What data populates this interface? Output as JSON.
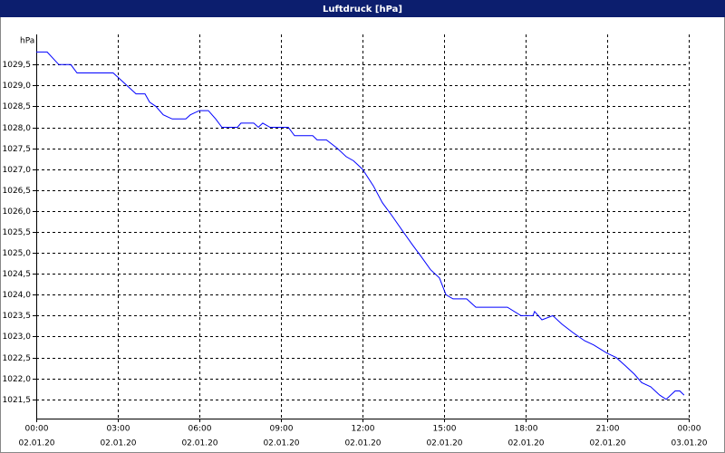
{
  "chart_data": {
    "type": "line",
    "title": "Luftdruck [hPa]",
    "ylabel": "hPa",
    "grid": true,
    "xlim": [
      0,
      24
    ],
    "ylim": [
      1021.04,
      1030.22
    ],
    "xticks": [
      {
        "value": 0,
        "label": "00:00",
        "date": "02.01.20"
      },
      {
        "value": 3,
        "label": "03:00",
        "date": "02.01.20"
      },
      {
        "value": 6,
        "label": "06:00",
        "date": "02.01.20"
      },
      {
        "value": 9,
        "label": "09:00",
        "date": "02.01.20"
      },
      {
        "value": 12,
        "label": "12:00",
        "date": "02.01.20"
      },
      {
        "value": 15,
        "label": "15:00",
        "date": "02.01.20"
      },
      {
        "value": 18,
        "label": "18:00",
        "date": "02.01.20"
      },
      {
        "value": 21,
        "label": "21:00",
        "date": "02.01.20"
      },
      {
        "value": 24,
        "label": "00:00",
        "date": "03.01.20"
      }
    ],
    "yticks": [
      {
        "value": 1021.5,
        "label": "1021,5"
      },
      {
        "value": 1022,
        "label": "1022,0"
      },
      {
        "value": 1022.5,
        "label": "1022,5"
      },
      {
        "value": 1023,
        "label": "1023,0"
      },
      {
        "value": 1023.5,
        "label": "1023,5"
      },
      {
        "value": 1024,
        "label": "1024,0"
      },
      {
        "value": 1024.5,
        "label": "1024,5"
      },
      {
        "value": 1025,
        "label": "1025,0"
      },
      {
        "value": 1025.5,
        "label": "1025,5"
      },
      {
        "value": 1026,
        "label": "1026,0"
      },
      {
        "value": 1026.5,
        "label": "1026,5"
      },
      {
        "value": 1027,
        "label": "1027,0"
      },
      {
        "value": 1027.5,
        "label": "1027,5"
      },
      {
        "value": 1028,
        "label": "1028,0"
      },
      {
        "value": 1028.5,
        "label": "1028,5"
      },
      {
        "value": 1029,
        "label": "1029,0"
      },
      {
        "value": 1029.5,
        "label": "1029,5"
      }
    ],
    "color": "#0000ff",
    "x": [
      0,
      0.4,
      0.83,
      1.27,
      1.5,
      2.83,
      3,
      3.33,
      3.67,
      4,
      4.17,
      4.4,
      4.67,
      5,
      5.5,
      5.67,
      6,
      6.33,
      6.6,
      6.83,
      7.4,
      7.53,
      8,
      8.17,
      8.33,
      8.6,
      9.27,
      9.5,
      10.17,
      10.33,
      10.67,
      11.07,
      11.4,
      11.67,
      12,
      12.4,
      12.73,
      13.07,
      13.5,
      13.83,
      14.17,
      14.5,
      14.83,
      15.07,
      15.33,
      15.83,
      16.17,
      16.67,
      17.33,
      17.83,
      18.27,
      18.33,
      18.6,
      19,
      19.33,
      19.73,
      20.17,
      20.5,
      21,
      21.33,
      21.67,
      22,
      22.27,
      22.6,
      22.93,
      23.17,
      23.5,
      23.67,
      23.83
    ],
    "values": [
      1029.8,
      1029.8,
      1029.5,
      1029.5,
      1029.3,
      1029.3,
      1029.2,
      1029.0,
      1028.8,
      1028.8,
      1028.6,
      1028.5,
      1028.3,
      1028.2,
      1028.2,
      1028.3,
      1028.4,
      1028.4,
      1028.2,
      1028.0,
      1028.0,
      1028.1,
      1028.1,
      1028.0,
      1028.1,
      1028.0,
      1028.0,
      1027.8,
      1027.8,
      1027.7,
      1027.7,
      1027.5,
      1027.3,
      1027.2,
      1027.0,
      1026.6,
      1026.2,
      1025.9,
      1025.5,
      1025.2,
      1024.9,
      1024.6,
      1024.4,
      1024.0,
      1023.9,
      1023.9,
      1023.7,
      1023.7,
      1023.7,
      1023.5,
      1023.5,
      1023.6,
      1023.4,
      1023.5,
      1023.3,
      1023.1,
      1022.9,
      1022.8,
      1022.6,
      1022.5,
      1022.3,
      1022.1,
      1021.9,
      1021.8,
      1021.6,
      1021.5,
      1021.7,
      1021.7,
      1021.6
    ]
  }
}
